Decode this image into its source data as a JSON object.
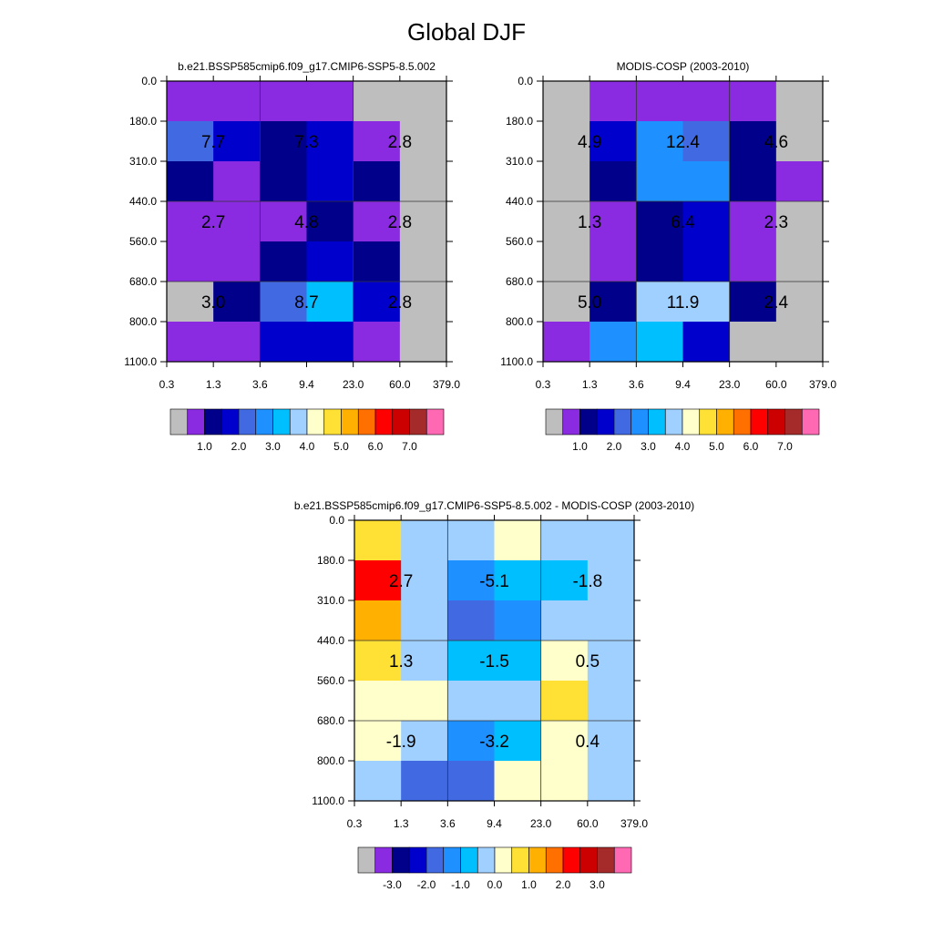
{
  "page_title": "Global DJF",
  "chart_data": [
    {
      "type": "heatmap",
      "title": "b.e21.BSSP585cmip6.f09_g17.CMIP6-SSP5-8.5.002",
      "x_ticks": [
        "0.3",
        "1.3",
        "3.6",
        "9.4",
        "23.0",
        "60.0",
        "379.0"
      ],
      "y_ticks": [
        "0.0",
        "180.0",
        "310.0",
        "440.0",
        "560.0",
        "680.0",
        "800.0",
        "1100.0"
      ],
      "cell_colors": [
        [
          "#8a2be2",
          "#8a2be2",
          "#8a2be2",
          "#8a2be2",
          "#bebebe",
          "#bebebe"
        ],
        [
          "#4169e1",
          "#0000cd",
          "#00008b",
          "#0000cd",
          "#8a2be2",
          "#bebebe"
        ],
        [
          "#00008b",
          "#8a2be2",
          "#00008b",
          "#0000cd",
          "#00008b",
          "#bebebe"
        ],
        [
          "#8a2be2",
          "#8a2be2",
          "#8a2be2",
          "#00008b",
          "#8a2be2",
          "#bebebe"
        ],
        [
          "#8a2be2",
          "#8a2be2",
          "#00008b",
          "#0000cd",
          "#00008b",
          "#bebebe"
        ],
        [
          "#bebebe",
          "#00008b",
          "#4169e1",
          "#00bfff",
          "#0000cd",
          "#bebebe"
        ],
        [
          "#8a2be2",
          "#8a2be2",
          "#0000cd",
          "#0000cd",
          "#8a2be2",
          "#bebebe"
        ]
      ],
      "block_labels": [
        [
          "7.7",
          "7.3",
          "2.8"
        ],
        [
          "2.7",
          "4.8",
          "2.8"
        ],
        [
          "3.0",
          "8.7",
          "2.8"
        ]
      ],
      "colorbar": {
        "colors": [
          "#bebebe",
          "#8a2be2",
          "#00008b",
          "#0000cd",
          "#4169e1",
          "#1e90ff",
          "#00bfff",
          "#a0d0ff",
          "#ffffcc",
          "#ffe135",
          "#ffb000",
          "#ff7000",
          "#ff0000",
          "#cc0000",
          "#a52a2a",
          "#ff69b4"
        ],
        "labels": [
          "1.0",
          "2.0",
          "3.0",
          "4.0",
          "5.0",
          "6.0",
          "7.0"
        ]
      }
    },
    {
      "type": "heatmap",
      "title": "MODIS-COSP (2003-2010)",
      "x_ticks": [
        "0.3",
        "1.3",
        "3.6",
        "9.4",
        "23.0",
        "60.0",
        "379.0"
      ],
      "y_ticks": [
        "0.0",
        "180.0",
        "310.0",
        "440.0",
        "560.0",
        "680.0",
        "800.0",
        "1100.0"
      ],
      "cell_colors": [
        [
          "#bebebe",
          "#8a2be2",
          "#8a2be2",
          "#8a2be2",
          "#8a2be2",
          "#bebebe"
        ],
        [
          "#bebebe",
          "#0000cd",
          "#1e90ff",
          "#4169e1",
          "#00008b",
          "#bebebe"
        ],
        [
          "#bebebe",
          "#00008b",
          "#1e90ff",
          "#1e90ff",
          "#00008b",
          "#8a2be2"
        ],
        [
          "#bebebe",
          "#8a2be2",
          "#00008b",
          "#0000cd",
          "#8a2be2",
          "#bebebe"
        ],
        [
          "#bebebe",
          "#8a2be2",
          "#00008b",
          "#0000cd",
          "#8a2be2",
          "#bebebe"
        ],
        [
          "#bebebe",
          "#00008b",
          "#a0d0ff",
          "#a0d0ff",
          "#00008b",
          "#bebebe"
        ],
        [
          "#8a2be2",
          "#1e90ff",
          "#00bfff",
          "#0000cd",
          "#bebebe",
          "#bebebe"
        ]
      ],
      "block_labels": [
        [
          "4.9",
          "12.4",
          "4.6"
        ],
        [
          "1.3",
          "6.4",
          "2.3"
        ],
        [
          "5.0",
          "11.9",
          "2.4"
        ]
      ],
      "colorbar": {
        "colors": [
          "#bebebe",
          "#8a2be2",
          "#00008b",
          "#0000cd",
          "#4169e1",
          "#1e90ff",
          "#00bfff",
          "#a0d0ff",
          "#ffffcc",
          "#ffe135",
          "#ffb000",
          "#ff7000",
          "#ff0000",
          "#cc0000",
          "#a52a2a",
          "#ff69b4"
        ],
        "labels": [
          "1.0",
          "2.0",
          "3.0",
          "4.0",
          "5.0",
          "6.0",
          "7.0"
        ]
      }
    },
    {
      "type": "heatmap",
      "title": "b.e21.BSSP585cmip6.f09_g17.CMIP6-SSP5-8.5.002 - MODIS-COSP (2003-2010)",
      "x_ticks": [
        "0.3",
        "1.3",
        "3.6",
        "9.4",
        "23.0",
        "60.0",
        "379.0"
      ],
      "y_ticks": [
        "0.0",
        "180.0",
        "310.0",
        "440.0",
        "560.0",
        "680.0",
        "800.0",
        "1100.0"
      ],
      "cell_colors": [
        [
          "#ffe135",
          "#a0d0ff",
          "#a0d0ff",
          "#ffffcc",
          "#a0d0ff",
          "#a0d0ff"
        ],
        [
          "#ff0000",
          "#a0d0ff",
          "#1e90ff",
          "#00bfff",
          "#00bfff",
          "#a0d0ff"
        ],
        [
          "#ffb000",
          "#a0d0ff",
          "#4169e1",
          "#1e90ff",
          "#a0d0ff",
          "#a0d0ff"
        ],
        [
          "#ffe135",
          "#a0d0ff",
          "#00bfff",
          "#00bfff",
          "#ffffcc",
          "#a0d0ff"
        ],
        [
          "#ffffcc",
          "#ffffcc",
          "#a0d0ff",
          "#a0d0ff",
          "#ffe135",
          "#a0d0ff"
        ],
        [
          "#ffffcc",
          "#a0d0ff",
          "#1e90ff",
          "#00bfff",
          "#ffffcc",
          "#a0d0ff"
        ],
        [
          "#a0d0ff",
          "#4169e1",
          "#4169e1",
          "#ffffcc",
          "#ffffcc",
          "#a0d0ff"
        ]
      ],
      "block_labels": [
        [
          "2.7",
          "-5.1",
          "-1.8"
        ],
        [
          "1.3",
          "-1.5",
          "0.5"
        ],
        [
          "-1.9",
          "-3.2",
          "0.4"
        ]
      ],
      "colorbar": {
        "colors": [
          "#bebebe",
          "#8a2be2",
          "#00008b",
          "#0000cd",
          "#4169e1",
          "#1e90ff",
          "#00bfff",
          "#a0d0ff",
          "#ffffcc",
          "#ffe135",
          "#ffb000",
          "#ff7000",
          "#ff0000",
          "#cc0000",
          "#a52a2a",
          "#ff69b4"
        ],
        "labels": [
          "-3.0",
          "-2.0",
          "-1.0",
          "0.0",
          "1.0",
          "2.0",
          "3.0"
        ]
      }
    }
  ]
}
